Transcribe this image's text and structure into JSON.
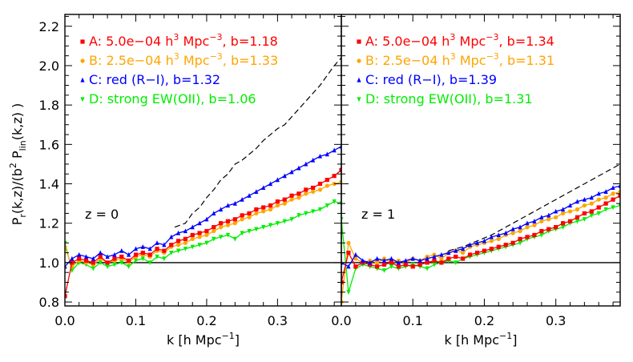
{
  "chart_data": [
    {
      "type": "line",
      "panel_label": "z = 0",
      "xlabel": "k [h Mpc⁻¹]",
      "ylabel": "P_r(k,z)/(b² P_lin(k,z) )",
      "xlim": [
        0.0,
        0.39
      ],
      "ylim": [
        0.78,
        2.26
      ],
      "x_ticks": [
        "0.0",
        "0.1",
        "0.2",
        "0.3"
      ],
      "y_ticks": [
        "0.8",
        "1.0",
        "1.2",
        "1.4",
        "1.6",
        "1.8",
        "2.0",
        "2.2"
      ],
      "legend_placement": "top-left",
      "reference_line_y": 1.0,
      "dashed_curve": {
        "color": "#000000",
        "x": [
          0.155,
          0.17,
          0.18,
          0.19,
          0.2,
          0.21,
          0.22,
          0.23,
          0.24,
          0.25,
          0.26,
          0.27,
          0.28,
          0.29,
          0.3,
          0.31,
          0.32,
          0.33,
          0.34,
          0.35,
          0.36,
          0.37,
          0.38,
          0.39
        ],
        "y": [
          1.18,
          1.2,
          1.25,
          1.28,
          1.33,
          1.37,
          1.42,
          1.45,
          1.5,
          1.52,
          1.55,
          1.58,
          1.62,
          1.65,
          1.68,
          1.7,
          1.74,
          1.78,
          1.82,
          1.86,
          1.9,
          1.95,
          2.0,
          2.04
        ]
      },
      "series": [
        {
          "name": "A: 5.0e−04 h³ Mpc⁻³, b=1.18",
          "label_parts": [
            "A: 5.0e−04 h",
            "3",
            " Mpc",
            "−3",
            ", b=1.18"
          ],
          "color": "#ff0000",
          "marker": "square",
          "x": [
            0.0,
            0.01,
            0.02,
            0.03,
            0.04,
            0.05,
            0.06,
            0.07,
            0.08,
            0.09,
            0.1,
            0.11,
            0.12,
            0.13,
            0.14,
            0.15,
            0.16,
            0.17,
            0.18,
            0.19,
            0.2,
            0.21,
            0.22,
            0.23,
            0.24,
            0.25,
            0.26,
            0.27,
            0.28,
            0.29,
            0.3,
            0.31,
            0.32,
            0.33,
            0.34,
            0.35,
            0.36,
            0.37,
            0.38,
            0.39
          ],
          "y": [
            0.83,
            1.0,
            1.02,
            1.01,
            1.0,
            1.03,
            1.0,
            1.02,
            1.03,
            1.01,
            1.04,
            1.05,
            1.04,
            1.07,
            1.06,
            1.09,
            1.11,
            1.12,
            1.14,
            1.15,
            1.16,
            1.18,
            1.2,
            1.21,
            1.22,
            1.24,
            1.25,
            1.27,
            1.28,
            1.29,
            1.31,
            1.32,
            1.34,
            1.35,
            1.37,
            1.38,
            1.4,
            1.42,
            1.44,
            1.47
          ]
        },
        {
          "name": "B: 2.5e−04 h³ Mpc⁻³, b=1.33",
          "label_parts": [
            "B: 2.5e−04 h",
            "3",
            " Mpc",
            "−3",
            ", b=1.33"
          ],
          "color": "#ffa500",
          "marker": "circle",
          "x": [
            0.0,
            0.01,
            0.02,
            0.03,
            0.04,
            0.05,
            0.06,
            0.07,
            0.08,
            0.09,
            0.1,
            0.11,
            0.12,
            0.13,
            0.14,
            0.15,
            0.16,
            0.17,
            0.18,
            0.19,
            0.2,
            0.21,
            0.22,
            0.23,
            0.24,
            0.25,
            0.26,
            0.27,
            0.28,
            0.29,
            0.3,
            0.31,
            0.32,
            0.33,
            0.34,
            0.35,
            0.36,
            0.37,
            0.38,
            0.39
          ],
          "y": [
            1.08,
            0.98,
            1.01,
            1.0,
            0.99,
            1.02,
            1.0,
            1.01,
            1.02,
            1.0,
            1.03,
            1.04,
            1.03,
            1.06,
            1.05,
            1.08,
            1.09,
            1.1,
            1.12,
            1.13,
            1.14,
            1.16,
            1.18,
            1.19,
            1.2,
            1.22,
            1.23,
            1.25,
            1.26,
            1.27,
            1.29,
            1.3,
            1.32,
            1.33,
            1.35,
            1.36,
            1.37,
            1.39,
            1.4,
            1.41
          ]
        },
        {
          "name": "C: red (R−I), b=1.32",
          "label_parts": [
            "C: red (R−I), b=1.32"
          ],
          "color": "#0000ff",
          "marker": "triangle",
          "x": [
            0.0,
            0.01,
            0.02,
            0.03,
            0.04,
            0.05,
            0.06,
            0.07,
            0.08,
            0.09,
            0.1,
            0.11,
            0.12,
            0.13,
            0.14,
            0.15,
            0.16,
            0.17,
            0.18,
            0.19,
            0.2,
            0.21,
            0.22,
            0.23,
            0.24,
            0.25,
            0.26,
            0.27,
            0.28,
            0.29,
            0.3,
            0.31,
            0.32,
            0.33,
            0.34,
            0.35,
            0.36,
            0.37,
            0.38,
            0.39
          ],
          "y": [
            0.98,
            1.02,
            1.04,
            1.03,
            1.02,
            1.05,
            1.03,
            1.04,
            1.06,
            1.04,
            1.07,
            1.08,
            1.07,
            1.1,
            1.09,
            1.13,
            1.15,
            1.16,
            1.18,
            1.2,
            1.22,
            1.25,
            1.27,
            1.29,
            1.3,
            1.32,
            1.34,
            1.36,
            1.38,
            1.4,
            1.42,
            1.44,
            1.46,
            1.48,
            1.5,
            1.52,
            1.54,
            1.55,
            1.57,
            1.59
          ]
        },
        {
          "name": "D: strong EW(OII), b=1.06",
          "label_parts": [
            "D: strong EW(OII), b=1.06"
          ],
          "color": "#00ee00",
          "marker": "triangle-down",
          "x": [
            0.0,
            0.01,
            0.02,
            0.03,
            0.04,
            0.05,
            0.06,
            0.07,
            0.08,
            0.09,
            0.1,
            0.11,
            0.12,
            0.13,
            0.14,
            0.15,
            0.16,
            0.17,
            0.18,
            0.19,
            0.2,
            0.21,
            0.22,
            0.23,
            0.24,
            0.25,
            0.26,
            0.27,
            0.28,
            0.29,
            0.3,
            0.31,
            0.32,
            0.33,
            0.34,
            0.35,
            0.36,
            0.37,
            0.38,
            0.39
          ],
          "y": [
            1.1,
            0.96,
            1.0,
            0.99,
            0.97,
            1.0,
            0.98,
            0.99,
            1.0,
            0.98,
            1.01,
            1.02,
            1.0,
            1.03,
            1.02,
            1.05,
            1.06,
            1.07,
            1.08,
            1.09,
            1.1,
            1.12,
            1.13,
            1.14,
            1.12,
            1.15,
            1.16,
            1.17,
            1.18,
            1.19,
            1.2,
            1.21,
            1.22,
            1.24,
            1.25,
            1.26,
            1.27,
            1.29,
            1.31,
            1.3
          ]
        }
      ]
    },
    {
      "type": "line",
      "panel_label": "z = 1",
      "xlabel": "k [h Mpc⁻¹]",
      "xlim": [
        0.0,
        0.39
      ],
      "ylim": [
        0.78,
        2.26
      ],
      "x_ticks": [
        "0.0",
        "0.1",
        "0.2",
        "0.3"
      ],
      "legend_placement": "top-left",
      "reference_line_y": 1.0,
      "dashed_curve": {
        "color": "#000000",
        "x": [
          0.15,
          0.17,
          0.19,
          0.21,
          0.23,
          0.25,
          0.27,
          0.29,
          0.31,
          0.33,
          0.35,
          0.37,
          0.39
        ],
        "y": [
          1.06,
          1.08,
          1.11,
          1.14,
          1.18,
          1.22,
          1.26,
          1.3,
          1.34,
          1.38,
          1.42,
          1.46,
          1.5
        ]
      },
      "series": [
        {
          "name": "A: 5.0e−04 h³ Mpc⁻³, b=1.34",
          "label_parts": [
            "A: 5.0e−04 h",
            "3",
            " Mpc",
            "−3",
            ", b=1.34"
          ],
          "color": "#ff0000",
          "marker": "square",
          "x": [
            0.0,
            0.01,
            0.02,
            0.03,
            0.04,
            0.05,
            0.06,
            0.07,
            0.08,
            0.09,
            0.1,
            0.11,
            0.12,
            0.13,
            0.14,
            0.15,
            0.16,
            0.17,
            0.18,
            0.19,
            0.2,
            0.21,
            0.22,
            0.23,
            0.24,
            0.25,
            0.26,
            0.27,
            0.28,
            0.29,
            0.3,
            0.31,
            0.32,
            0.33,
            0.34,
            0.35,
            0.36,
            0.37,
            0.38,
            0.39
          ],
          "y": [
            0.9,
            1.05,
            0.98,
            1.0,
            0.99,
            0.98,
            0.99,
            1.0,
            0.98,
            0.99,
            0.98,
            0.99,
            1.0,
            1.01,
            1.0,
            1.02,
            1.03,
            1.02,
            1.04,
            1.05,
            1.06,
            1.07,
            1.08,
            1.09,
            1.1,
            1.12,
            1.13,
            1.14,
            1.16,
            1.17,
            1.18,
            1.2,
            1.21,
            1.23,
            1.25,
            1.26,
            1.28,
            1.3,
            1.32,
            1.34
          ]
        },
        {
          "name": "B: 2.5e−04 h³ Mpc⁻³, b=1.31",
          "label_parts": [
            "B: 2.5e−04 h",
            "3",
            " Mpc",
            "−3",
            ", b=1.31"
          ],
          "color": "#ffa500",
          "marker": "circle",
          "x": [
            0.0,
            0.01,
            0.02,
            0.03,
            0.04,
            0.05,
            0.06,
            0.07,
            0.08,
            0.09,
            0.1,
            0.11,
            0.12,
            0.13,
            0.14,
            0.15,
            0.16,
            0.17,
            0.18,
            0.19,
            0.2,
            0.21,
            0.22,
            0.23,
            0.24,
            0.25,
            0.26,
            0.27,
            0.28,
            0.29,
            0.3,
            0.31,
            0.32,
            0.33,
            0.34,
            0.35,
            0.36,
            0.37,
            0.38,
            0.39
          ],
          "y": [
            0.8,
            1.1,
            1.02,
            1.0,
            1.01,
            1.0,
            1.02,
            1.0,
            1.01,
            1.0,
            1.02,
            1.01,
            1.03,
            1.04,
            1.02,
            1.05,
            1.06,
            1.05,
            1.08,
            1.09,
            1.1,
            1.11,
            1.12,
            1.14,
            1.15,
            1.16,
            1.18,
            1.19,
            1.21,
            1.22,
            1.23,
            1.25,
            1.26,
            1.27,
            1.29,
            1.3,
            1.32,
            1.33,
            1.35,
            1.36
          ]
        },
        {
          "name": "C: red (R−I), b=1.39",
          "label_parts": [
            "C: red (R−I), b=1.39"
          ],
          "color": "#0000ff",
          "marker": "triangle",
          "x": [
            0.0,
            0.01,
            0.02,
            0.03,
            0.04,
            0.05,
            0.06,
            0.07,
            0.08,
            0.09,
            0.1,
            0.11,
            0.12,
            0.13,
            0.14,
            0.15,
            0.16,
            0.17,
            0.18,
            0.19,
            0.2,
            0.21,
            0.22,
            0.23,
            0.24,
            0.25,
            0.26,
            0.27,
            0.28,
            0.29,
            0.3,
            0.31,
            0.32,
            0.33,
            0.34,
            0.35,
            0.36,
            0.37,
            0.38,
            0.39
          ],
          "y": [
            1.0,
            0.98,
            1.04,
            1.01,
            1.0,
            1.02,
            1.01,
            1.02,
            1.0,
            1.01,
            1.02,
            1.01,
            1.02,
            1.03,
            1.04,
            1.05,
            1.06,
            1.07,
            1.09,
            1.1,
            1.11,
            1.13,
            1.14,
            1.15,
            1.17,
            1.18,
            1.2,
            1.21,
            1.23,
            1.24,
            1.26,
            1.27,
            1.29,
            1.31,
            1.32,
            1.33,
            1.35,
            1.36,
            1.38,
            1.39
          ]
        },
        {
          "name": "D: strong EW(OII), b=1.31",
          "label_parts": [
            "D: strong EW(OII), b=1.31"
          ],
          "color": "#00ee00",
          "marker": "triangle-down",
          "x": [
            0.0,
            0.01,
            0.02,
            0.03,
            0.04,
            0.05,
            0.06,
            0.07,
            0.08,
            0.09,
            0.1,
            0.11,
            0.12,
            0.13,
            0.14,
            0.15,
            0.16,
            0.17,
            0.18,
            0.19,
            0.2,
            0.21,
            0.22,
            0.23,
            0.24,
            0.25,
            0.26,
            0.27,
            0.28,
            0.29,
            0.3,
            0.31,
            0.32,
            0.33,
            0.34,
            0.35,
            0.36,
            0.37,
            0.38,
            0.39
          ],
          "y": [
            1.22,
            0.85,
            0.97,
            0.99,
            0.98,
            0.97,
            0.96,
            0.98,
            0.97,
            0.98,
            0.99,
            0.98,
            0.97,
            0.99,
            1.0,
            1.01,
            1.0,
            1.02,
            1.03,
            1.04,
            1.05,
            1.06,
            1.07,
            1.08,
            1.09,
            1.1,
            1.12,
            1.13,
            1.14,
            1.16,
            1.17,
            1.18,
            1.2,
            1.21,
            1.22,
            1.24,
            1.25,
            1.27,
            1.28,
            1.29
          ]
        }
      ]
    }
  ]
}
